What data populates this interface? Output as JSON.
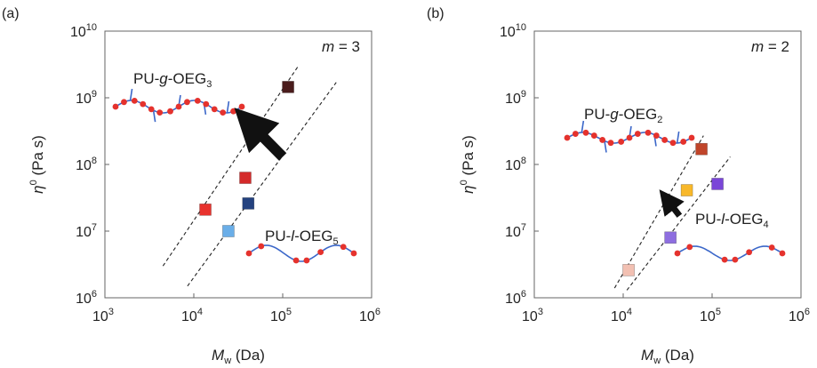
{
  "chart_data": [
    {
      "panel_label": "(a)",
      "type": "scatter",
      "annotation": {
        "m_symbol": "m",
        "m_rest": " = 3"
      },
      "xlabel": {
        "main": "M",
        "sub": "w",
        "rest": " (Da)"
      },
      "ylabel": {
        "main": "η",
        "sup": "0",
        "rest": " (Pa s)"
      },
      "xscale": "log",
      "yscale": "log",
      "xlim": [
        1000,
        1000000
      ],
      "ylim": [
        1000000,
        10000000000
      ],
      "xticks": [
        {
          "base": "10",
          "exp": "3"
        },
        {
          "base": "10",
          "exp": "4"
        },
        {
          "base": "10",
          "exp": "5"
        },
        {
          "base": "10",
          "exp": "6"
        }
      ],
      "yticks": [
        {
          "base": "10",
          "exp": "6"
        },
        {
          "base": "10",
          "exp": "7"
        },
        {
          "base": "10",
          "exp": "8"
        },
        {
          "base": "10",
          "exp": "9"
        },
        {
          "base": "10",
          "exp": "10"
        }
      ],
      "grid": false,
      "points": [
        {
          "x": 13500,
          "y": 21000000,
          "color": "#e8322d"
        },
        {
          "x": 24500,
          "y": 10000000,
          "color": "#6aaee8"
        },
        {
          "x": 38000,
          "y": 63000000,
          "color": "#d42a2a"
        },
        {
          "x": 41000,
          "y": 26000000,
          "color": "#24427f"
        },
        {
          "x": 115000,
          "y": 1450000000,
          "color": "#4a1c1c"
        }
      ],
      "guide_lines": [
        {
          "x": [
            4500,
            150000
          ],
          "y": [
            3000000,
            3000000000
          ]
        },
        {
          "x": [
            8500,
            400000
          ],
          "y": [
            1500000,
            1700000000
          ]
        }
      ],
      "arrow": {
        "from": {
          "x": 100000,
          "y": 130000000
        },
        "to": {
          "x": 42000,
          "y": 420000000
        }
      },
      "labels": [
        {
          "pre": "PU-",
          "ital": "g",
          "mid": "-OEG",
          "sub": "3",
          "x": 2000,
          "y": 1200000000
        },
        {
          "pre": "PU-",
          "ital": "l",
          "mid": "-OEG",
          "sub": "5",
          "x": 60000,
          "y": 13000000
        }
      ]
    },
    {
      "panel_label": "(b)",
      "type": "scatter",
      "annotation": {
        "m_symbol": "m",
        "m_rest": " = 2"
      },
      "xlabel": {
        "main": "M",
        "sub": "w",
        "rest": " (Da)"
      },
      "ylabel": {
        "main": "η",
        "sup": "0",
        "rest": " (Pa s)"
      },
      "xscale": "log",
      "yscale": "log",
      "xlim": [
        1000,
        1000000
      ],
      "ylim": [
        1000000,
        10000000000
      ],
      "xticks": [
        {
          "base": "10",
          "exp": "3"
        },
        {
          "base": "10",
          "exp": "4"
        },
        {
          "base": "10",
          "exp": "5"
        },
        {
          "base": "10",
          "exp": "6"
        }
      ],
      "yticks": [
        {
          "base": "10",
          "exp": "6"
        },
        {
          "base": "10",
          "exp": "7"
        },
        {
          "base": "10",
          "exp": "8"
        },
        {
          "base": "10",
          "exp": "9"
        },
        {
          "base": "10",
          "exp": "10"
        }
      ],
      "grid": false,
      "points": [
        {
          "x": 11500,
          "y": 2600000,
          "color": "#f2c0b2"
        },
        {
          "x": 34000,
          "y": 8000000,
          "color": "#8e6ee0"
        },
        {
          "x": 52000,
          "y": 41000000,
          "color": "#f8b82a"
        },
        {
          "x": 76000,
          "y": 170000000,
          "color": "#c0452a"
        },
        {
          "x": 115000,
          "y": 51000000,
          "color": "#7a46d8"
        }
      ],
      "guide_lines": [
        {
          "x": [
            8000,
            80000
          ],
          "y": [
            1400000,
            270000000
          ]
        },
        {
          "x": [
            11000,
            160000
          ],
          "y": [
            1300000,
            130000000
          ]
        }
      ],
      "arrow": {
        "from": {
          "x": 43000,
          "y": 17000000
        },
        "to": {
          "x": 31000,
          "y": 30000000
        }
      },
      "labels": [
        {
          "pre": "PU-",
          "ital": "g",
          "mid": "-OEG",
          "sub": "2",
          "x": 5500,
          "y": 430000000
        },
        {
          "pre": "PU-",
          "ital": "l",
          "mid": "-OEG",
          "sub": "4",
          "x": 83000,
          "y": 14000000
        }
      ]
    }
  ]
}
